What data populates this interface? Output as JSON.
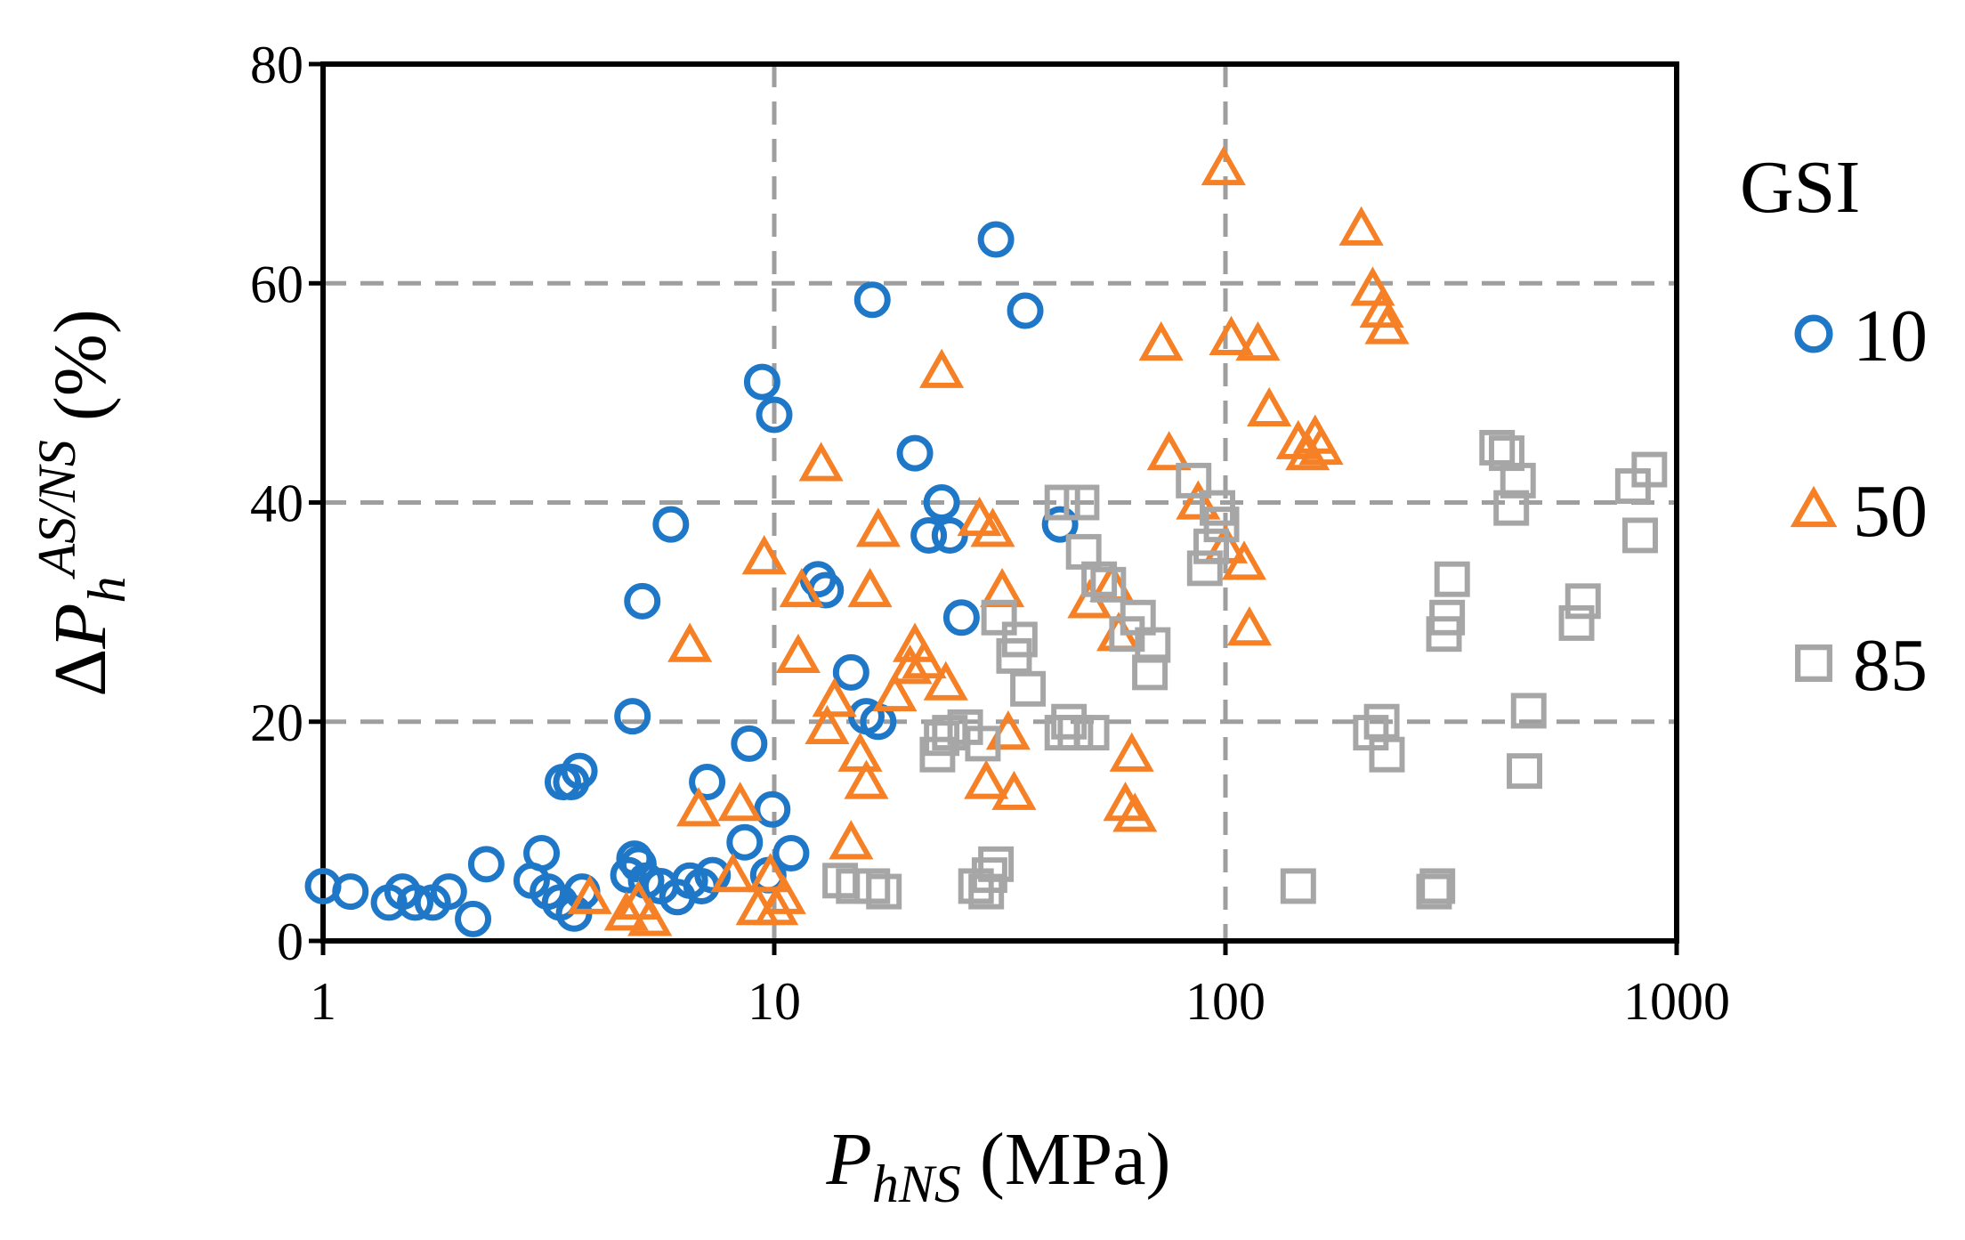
{
  "chart_data": {
    "type": "scatter",
    "x_scale": "log",
    "xlim": [
      1,
      1000
    ],
    "ylim": [
      0,
      80
    ],
    "x_ticks": [
      "1",
      "10",
      "100",
      "1000"
    ],
    "y_ticks": [
      "0",
      "20",
      "40",
      "60",
      "80"
    ],
    "xlabel": {
      "main": "P",
      "sub": "hNS",
      "unit": " (MPa)"
    },
    "ylabel": {
      "delta": "Δ",
      "main": "P",
      "sub": "h",
      "sup": "AS/NS",
      "unit": " (%)"
    },
    "grid": "dashed",
    "legend": {
      "title": "GSI",
      "position": "right"
    },
    "series": [
      {
        "name": "10",
        "marker": "circle",
        "color": "#1F77C8",
        "points": [
          [
            1.0,
            5
          ],
          [
            1.15,
            4.5
          ],
          [
            1.4,
            3.5
          ],
          [
            1.5,
            4.5
          ],
          [
            1.6,
            3.5
          ],
          [
            1.75,
            3.5
          ],
          [
            1.9,
            4.5
          ],
          [
            2.15,
            2
          ],
          [
            2.3,
            7
          ],
          [
            2.9,
            5.5
          ],
          [
            3.05,
            8
          ],
          [
            3.15,
            4.5
          ],
          [
            3.35,
            3.5
          ],
          [
            3.4,
            14.5
          ],
          [
            3.55,
            14.5
          ],
          [
            3.6,
            2.5
          ],
          [
            3.7,
            15.5
          ],
          [
            3.75,
            4.5
          ],
          [
            4.75,
            6
          ],
          [
            4.85,
            20.5
          ],
          [
            4.9,
            7.5
          ],
          [
            5.0,
            7
          ],
          [
            5.1,
            31
          ],
          [
            5.2,
            5.5
          ],
          [
            5.6,
            5
          ],
          [
            5.9,
            38
          ],
          [
            6.1,
            4
          ],
          [
            6.5,
            5.5
          ],
          [
            6.9,
            5
          ],
          [
            7.1,
            14.5
          ],
          [
            7.3,
            6
          ],
          [
            8.6,
            9
          ],
          [
            8.8,
            18
          ],
          [
            9.4,
            51
          ],
          [
            9.7,
            6
          ],
          [
            9.9,
            12
          ],
          [
            10.0,
            48
          ],
          [
            10.9,
            8
          ],
          [
            12.5,
            33
          ],
          [
            13.0,
            32
          ],
          [
            14.8,
            24.5
          ],
          [
            16.0,
            20.5
          ],
          [
            16.5,
            58.5
          ],
          [
            17.0,
            20
          ],
          [
            20.5,
            44.5
          ],
          [
            22.0,
            37
          ],
          [
            23.5,
            40
          ],
          [
            24.5,
            37
          ],
          [
            26.0,
            29.5
          ],
          [
            31.0,
            64
          ],
          [
            36.0,
            57.5
          ],
          [
            43.0,
            38
          ]
        ]
      },
      {
        "name": "50",
        "marker": "triangle",
        "color": "#F58025",
        "points": [
          [
            3.9,
            4
          ],
          [
            4.7,
            2.5
          ],
          [
            5.0,
            3.5
          ],
          [
            5.3,
            2
          ],
          [
            6.5,
            27
          ],
          [
            6.8,
            12
          ],
          [
            8.1,
            6
          ],
          [
            8.4,
            12.5
          ],
          [
            9.2,
            3
          ],
          [
            9.5,
            35
          ],
          [
            9.8,
            6
          ],
          [
            10.1,
            3
          ],
          [
            10.5,
            4
          ],
          [
            11.5,
            32
          ],
          [
            11.3,
            26
          ],
          [
            12.7,
            43.5
          ],
          [
            13.1,
            19.5
          ],
          [
            13.6,
            22
          ],
          [
            14.8,
            9
          ],
          [
            15.5,
            17
          ],
          [
            16.0,
            14.5
          ],
          [
            16.3,
            32
          ],
          [
            17.0,
            37.5
          ],
          [
            18.5,
            22.5
          ],
          [
            20.0,
            25
          ],
          [
            20.5,
            27
          ],
          [
            21.5,
            25.5
          ],
          [
            23.5,
            52
          ],
          [
            24.0,
            23.5
          ],
          [
            28.5,
            38.5
          ],
          [
            29.5,
            14.5
          ],
          [
            30.5,
            37.5
          ],
          [
            32.0,
            32
          ],
          [
            33.0,
            19
          ],
          [
            34.0,
            13.5
          ],
          [
            50.0,
            31
          ],
          [
            56.0,
            32.5
          ],
          [
            58.0,
            28
          ],
          [
            60.0,
            12.5
          ],
          [
            62.0,
            17
          ],
          [
            63.0,
            11.5
          ],
          [
            72.0,
            54.5
          ],
          [
            75.0,
            44.5
          ],
          [
            87.0,
            40
          ],
          [
            99.0,
            70.5
          ],
          [
            100.0,
            36
          ],
          [
            103.0,
            55
          ],
          [
            110.0,
            34.5
          ],
          [
            113.0,
            28.5
          ],
          [
            118.0,
            54.5
          ],
          [
            125.0,
            48.5
          ],
          [
            145.0,
            45.5
          ],
          [
            152.0,
            44.5
          ],
          [
            158.0,
            46
          ],
          [
            163.0,
            45
          ],
          [
            200.0,
            65
          ],
          [
            212.0,
            59.5
          ],
          [
            222.0,
            57.5
          ],
          [
            228.0,
            56
          ]
        ]
      },
      {
        "name": "85",
        "marker": "square",
        "color": "#A6A6A6",
        "points": [
          [
            14.0,
            5.5
          ],
          [
            15.0,
            5
          ],
          [
            16.5,
            5
          ],
          [
            17.5,
            4.5
          ],
          [
            23.0,
            17
          ],
          [
            23.5,
            18.5
          ],
          [
            24.5,
            19
          ],
          [
            26.5,
            19.5
          ],
          [
            28.0,
            5
          ],
          [
            29.0,
            18
          ],
          [
            29.5,
            4.5
          ],
          [
            30.0,
            6
          ],
          [
            31.0,
            7
          ],
          [
            31.5,
            29.5
          ],
          [
            34.0,
            26
          ],
          [
            35.0,
            27.5
          ],
          [
            36.5,
            23
          ],
          [
            43.5,
            19
          ],
          [
            43.5,
            40
          ],
          [
            45.0,
            20
          ],
          [
            46.5,
            19
          ],
          [
            48.0,
            40
          ],
          [
            48.5,
            35.5
          ],
          [
            50.5,
            19
          ],
          [
            52.5,
            33
          ],
          [
            55.0,
            32.5
          ],
          [
            60.5,
            28
          ],
          [
            64.0,
            29.5
          ],
          [
            68.0,
            24.5
          ],
          [
            69.0,
            27
          ],
          [
            85.0,
            42
          ],
          [
            90.0,
            34
          ],
          [
            93.0,
            36
          ],
          [
            96.0,
            39.5
          ],
          [
            98.0,
            38
          ],
          [
            145.0,
            5
          ],
          [
            210.0,
            19
          ],
          [
            222.0,
            20
          ],
          [
            228.0,
            17
          ],
          [
            290.0,
            4.5
          ],
          [
            295.0,
            5
          ],
          [
            305.0,
            28
          ],
          [
            310.0,
            29.5
          ],
          [
            318.0,
            33
          ],
          [
            400.0,
            45
          ],
          [
            420.0,
            44.5
          ],
          [
            430.0,
            39.5
          ],
          [
            445.0,
            42
          ],
          [
            460.0,
            15.5
          ],
          [
            470.0,
            21
          ],
          [
            600.0,
            29
          ],
          [
            620.0,
            31
          ],
          [
            800.0,
            41.5
          ],
          [
            830.0,
            37
          ],
          [
            870.0,
            43
          ]
        ]
      }
    ]
  }
}
